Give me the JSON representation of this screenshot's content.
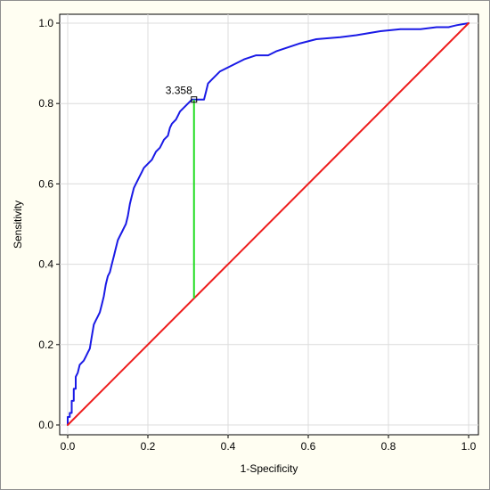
{
  "chart_data": {
    "type": "line",
    "title": "",
    "xlabel": "1-Specificity",
    "ylabel": "Sensitivity",
    "xlim": [
      0.0,
      1.0
    ],
    "ylim": [
      0.0,
      1.0
    ],
    "grid": true,
    "x_ticks": [
      "0.0",
      "0.2",
      "0.4",
      "0.6",
      "0.8",
      "1.0"
    ],
    "y_ticks": [
      "0.0",
      "0.2",
      "0.4",
      "0.6",
      "0.8",
      "1.0"
    ],
    "series": [
      {
        "color": "#1a1ae6",
        "points": [
          [
            0.0,
            0.0
          ],
          [
            0.0,
            0.02
          ],
          [
            0.005,
            0.02
          ],
          [
            0.005,
            0.03
          ],
          [
            0.01,
            0.03
          ],
          [
            0.01,
            0.06
          ],
          [
            0.015,
            0.06
          ],
          [
            0.015,
            0.09
          ],
          [
            0.02,
            0.09
          ],
          [
            0.02,
            0.12
          ],
          [
            0.025,
            0.13
          ],
          [
            0.03,
            0.15
          ],
          [
            0.04,
            0.16
          ],
          [
            0.045,
            0.17
          ],
          [
            0.05,
            0.18
          ],
          [
            0.055,
            0.19
          ],
          [
            0.06,
            0.22
          ],
          [
            0.065,
            0.25
          ],
          [
            0.07,
            0.26
          ],
          [
            0.075,
            0.27
          ],
          [
            0.08,
            0.28
          ],
          [
            0.085,
            0.3
          ],
          [
            0.09,
            0.32
          ],
          [
            0.095,
            0.35
          ],
          [
            0.1,
            0.37
          ],
          [
            0.105,
            0.38
          ],
          [
            0.11,
            0.4
          ],
          [
            0.115,
            0.42
          ],
          [
            0.12,
            0.44
          ],
          [
            0.125,
            0.46
          ],
          [
            0.13,
            0.47
          ],
          [
            0.135,
            0.48
          ],
          [
            0.14,
            0.49
          ],
          [
            0.145,
            0.5
          ],
          [
            0.15,
            0.52
          ],
          [
            0.155,
            0.55
          ],
          [
            0.16,
            0.57
          ],
          [
            0.165,
            0.59
          ],
          [
            0.17,
            0.6
          ],
          [
            0.18,
            0.62
          ],
          [
            0.185,
            0.63
          ],
          [
            0.19,
            0.64
          ],
          [
            0.2,
            0.65
          ],
          [
            0.21,
            0.66
          ],
          [
            0.22,
            0.68
          ],
          [
            0.23,
            0.69
          ],
          [
            0.235,
            0.7
          ],
          [
            0.24,
            0.71
          ],
          [
            0.25,
            0.72
          ],
          [
            0.255,
            0.74
          ],
          [
            0.26,
            0.75
          ],
          [
            0.27,
            0.76
          ],
          [
            0.275,
            0.77
          ],
          [
            0.28,
            0.78
          ],
          [
            0.29,
            0.79
          ],
          [
            0.3,
            0.8
          ],
          [
            0.31,
            0.81
          ],
          [
            0.325,
            0.81
          ],
          [
            0.34,
            0.81
          ],
          [
            0.345,
            0.83
          ],
          [
            0.35,
            0.85
          ],
          [
            0.36,
            0.86
          ],
          [
            0.37,
            0.87
          ],
          [
            0.38,
            0.88
          ],
          [
            0.39,
            0.885
          ],
          [
            0.4,
            0.89
          ],
          [
            0.42,
            0.9
          ],
          [
            0.44,
            0.91
          ],
          [
            0.47,
            0.92
          ],
          [
            0.5,
            0.92
          ],
          [
            0.52,
            0.93
          ],
          [
            0.55,
            0.94
          ],
          [
            0.58,
            0.95
          ],
          [
            0.62,
            0.96
          ],
          [
            0.68,
            0.965
          ],
          [
            0.72,
            0.97
          ],
          [
            0.78,
            0.98
          ],
          [
            0.83,
            0.985
          ],
          [
            0.88,
            0.985
          ],
          [
            0.92,
            0.99
          ],
          [
            0.95,
            0.99
          ],
          [
            0.97,
            0.995
          ],
          [
            1.0,
            1.0
          ]
        ]
      },
      {
        "color": "#ee1c1c",
        "points": [
          [
            0.0,
            0.0
          ],
          [
            1.0,
            1.0
          ]
        ]
      }
    ],
    "annotation": {
      "label": "3.358",
      "x": 0.315,
      "y": 0.81,
      "reference_y": 0.315,
      "line_color": "#22dd22",
      "marker_color": "#000000"
    }
  }
}
